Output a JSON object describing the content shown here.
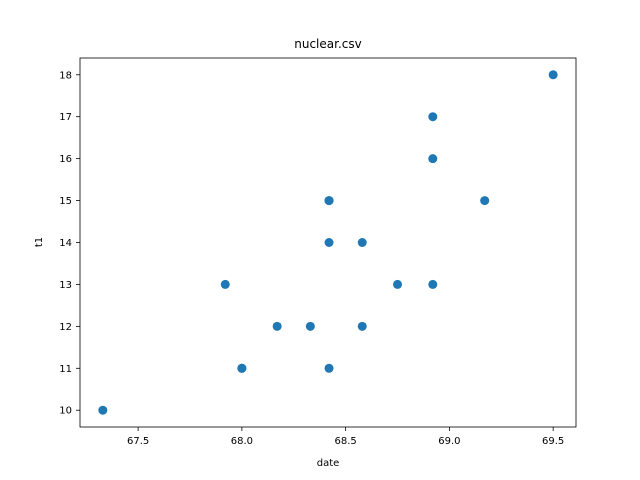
{
  "chart_data": {
    "type": "scatter",
    "title": "nuclear.csv",
    "xlabel": "date",
    "ylabel": "t1",
    "xlim": [
      67.22,
      69.61
    ],
    "ylim": [
      9.6,
      18.4
    ],
    "xticks": [
      67.5,
      68.0,
      68.5,
      69.0,
      69.5
    ],
    "xtick_labels": [
      "67.5",
      "68.0",
      "68.5",
      "69.0",
      "69.5"
    ],
    "yticks": [
      10,
      11,
      12,
      13,
      14,
      15,
      16,
      17,
      18
    ],
    "ytick_labels": [
      "10",
      "11",
      "12",
      "13",
      "14",
      "15",
      "16",
      "17",
      "18"
    ],
    "grid": false,
    "legend": false,
    "color": "#1f77b4",
    "points": [
      {
        "x": 67.33,
        "y": 10
      },
      {
        "x": 67.92,
        "y": 13
      },
      {
        "x": 68.0,
        "y": 11
      },
      {
        "x": 68.0,
        "y": 11
      },
      {
        "x": 68.17,
        "y": 12
      },
      {
        "x": 68.33,
        "y": 12
      },
      {
        "x": 68.42,
        "y": 15
      },
      {
        "x": 68.42,
        "y": 15
      },
      {
        "x": 68.42,
        "y": 14
      },
      {
        "x": 68.42,
        "y": 11
      },
      {
        "x": 68.58,
        "y": 14
      },
      {
        "x": 68.58,
        "y": 12
      },
      {
        "x": 68.75,
        "y": 13
      },
      {
        "x": 68.92,
        "y": 17
      },
      {
        "x": 68.92,
        "y": 16
      },
      {
        "x": 68.92,
        "y": 13
      },
      {
        "x": 69.17,
        "y": 15
      },
      {
        "x": 69.5,
        "y": 18
      }
    ]
  }
}
